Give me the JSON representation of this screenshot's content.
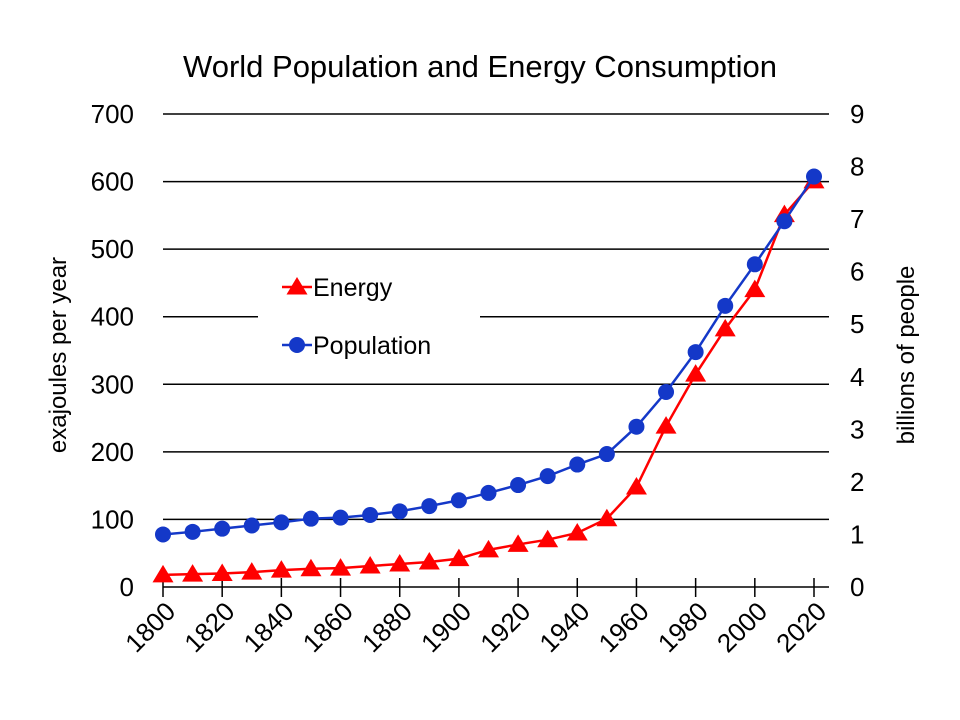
{
  "chart_data": {
    "type": "line",
    "title": "World Population and Energy Consumption",
    "xlabel": "",
    "ylabel": "exajoules per year",
    "y2label": "billions of people",
    "x": [
      1800,
      1810,
      1820,
      1830,
      1840,
      1850,
      1860,
      1870,
      1880,
      1890,
      1900,
      1910,
      1920,
      1930,
      1940,
      1950,
      1960,
      1970,
      1980,
      1990,
      2000,
      2010,
      2020
    ],
    "x_tick_labels": [
      "1800",
      "1820",
      "1840",
      "1860",
      "1880",
      "1900",
      "1920",
      "1940",
      "1960",
      "1980",
      "2000",
      "2020"
    ],
    "ylim": [
      0,
      700
    ],
    "y_ticks": [
      0,
      100,
      200,
      300,
      400,
      500,
      600,
      700
    ],
    "y2lim": [
      0,
      9
    ],
    "y2_ticks": [
      0,
      1,
      2,
      3,
      4,
      5,
      6,
      7,
      8,
      9
    ],
    "grid": true,
    "legend_position": "upper-left-center",
    "series": [
      {
        "name": "Energy",
        "axis": "left",
        "color": "#ff0000",
        "marker": "triangle",
        "values": [
          18,
          19,
          20,
          22,
          25,
          27,
          28,
          31,
          34,
          37,
          42,
          55,
          63,
          70,
          80,
          101,
          148,
          238,
          315,
          382,
          440,
          551,
          601
        ]
      },
      {
        "name": "Population",
        "axis": "right",
        "color": "#1438c8",
        "marker": "circle",
        "values": [
          1.0,
          1.05,
          1.11,
          1.17,
          1.23,
          1.3,
          1.32,
          1.37,
          1.44,
          1.54,
          1.65,
          1.79,
          1.94,
          2.11,
          2.33,
          2.53,
          3.05,
          3.71,
          4.47,
          5.35,
          6.14,
          6.96,
          7.81
        ]
      }
    ]
  }
}
